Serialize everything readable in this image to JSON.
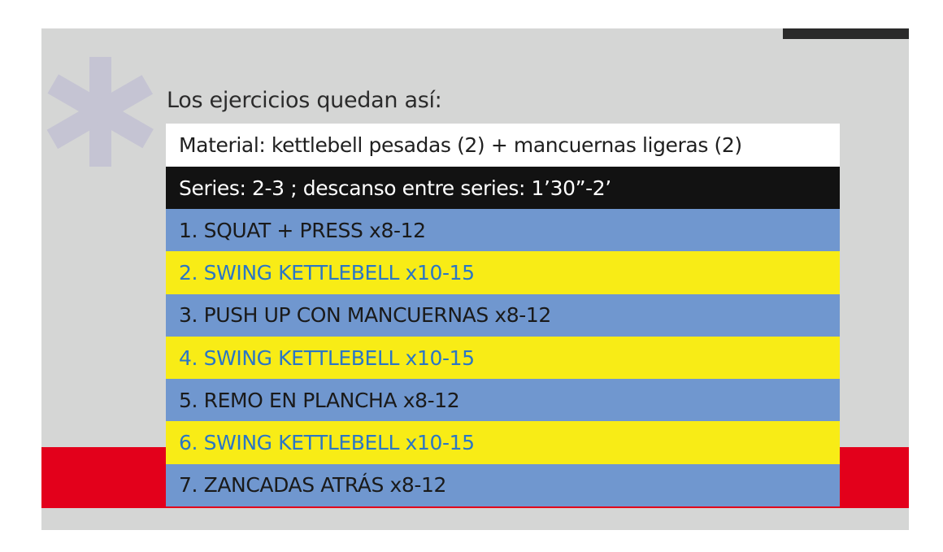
{
  "heading": "Los ejercicios quedan así:",
  "material": "Material: kettlebell pesadas (2) + mancuernas ligeras (2)",
  "series": "Series: 2-3 ;  descanso entre series: 1’30”-2’",
  "exercises": [
    {
      "label": "1. SQUAT + PRESS x8-12",
      "style": "blue"
    },
    {
      "label": "2. SWING KETTLEBELL x10-15",
      "style": "yellow"
    },
    {
      "label": "3. PUSH UP CON MANCUERNAS x8-12",
      "style": "blue"
    },
    {
      "label": "4. SWING KETTLEBELL x10-15",
      "style": "yellow"
    },
    {
      "label": "5. REMO EN PLANCHA x8-12",
      "style": "blue"
    },
    {
      "label": "6. SWING KETTLEBELL x10-15",
      "style": "yellow"
    },
    {
      "label": "7. ZANCADAS ATRÁS x8-12",
      "style": "blue"
    }
  ],
  "colors": {
    "background": "#d5d6d5",
    "red_band": "#e3001b",
    "row_blue": "#7097cf",
    "row_yellow": "#f8ec16",
    "yellow_text": "#2a76c6",
    "series_bg": "#121212",
    "asterisk": "#c5c4d3"
  },
  "decor": {
    "icon": "asterisk-icon"
  }
}
